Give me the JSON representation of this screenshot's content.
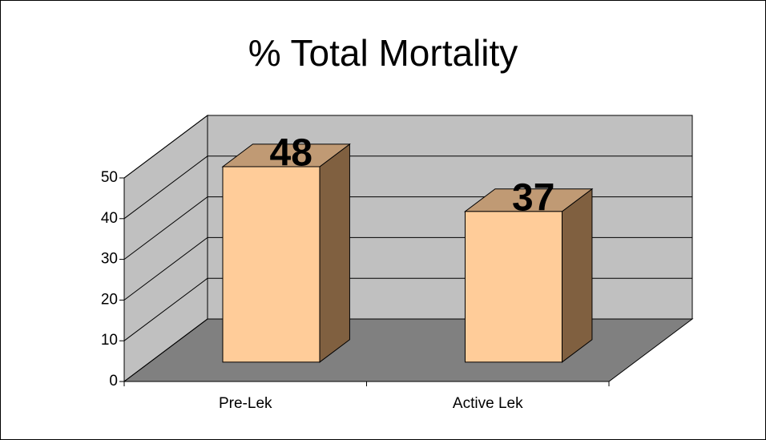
{
  "chart_data": {
    "type": "bar",
    "title": "% Total Mortality",
    "categories": [
      "Pre-Lek",
      "Active Lek"
    ],
    "values": [
      48,
      37
    ],
    "color": "#ffcc99",
    "ylim": [
      0,
      50
    ],
    "yticks": [
      0,
      10,
      20,
      30,
      40,
      50
    ],
    "grid": true
  }
}
